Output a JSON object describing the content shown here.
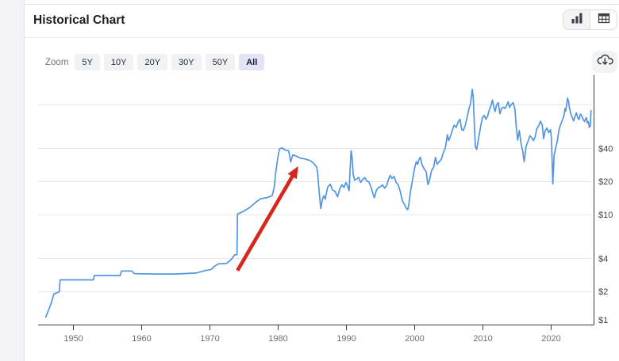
{
  "header": {
    "title": "Historical Chart",
    "view_toggle": {
      "options": [
        {
          "icon": "bar-chart-icon",
          "active": true
        },
        {
          "icon": "table-icon",
          "active": false
        }
      ]
    }
  },
  "toolbar": {
    "zoom_label": "Zoom",
    "range_buttons": [
      {
        "label": "5Y",
        "active": false
      },
      {
        "label": "10Y",
        "active": false
      },
      {
        "label": "20Y",
        "active": false
      },
      {
        "label": "30Y",
        "active": false
      },
      {
        "label": "50Y",
        "active": false
      },
      {
        "label": "All",
        "active": true
      }
    ],
    "download_icon": "cloud-download-icon"
  },
  "chart_data": {
    "type": "line",
    "title": "Historical Chart",
    "xlabel": "",
    "ylabel": "",
    "x_axis": {
      "ticks": [
        1950,
        1960,
        1970,
        1980,
        1990,
        2000,
        2010,
        2020
      ],
      "range": [
        1944.8,
        2026.3
      ]
    },
    "y_axis": {
      "scale": "log",
      "unit": "USD",
      "range": [
        1,
        180
      ],
      "ticks": [
        {
          "value": 40,
          "label": "$40"
        },
        {
          "value": 20,
          "label": "$20"
        },
        {
          "value": 10,
          "label": "$10"
        },
        {
          "value": 4,
          "label": "$4"
        },
        {
          "value": 2,
          "label": "$2"
        },
        {
          "value": 1,
          "label": "$1"
        }
      ],
      "gridline_values": [
        100,
        40,
        20,
        10,
        4,
        2,
        1
      ]
    },
    "legend": "none",
    "style": {
      "line_color": "#5295e2",
      "gridline_color": "#e7e7e7",
      "axis_color": "#3b3b3b",
      "x_label_color": "#6d7175",
      "y_label_color": "#3f4245",
      "annotation_color": "#d7261d"
    },
    "series": [
      {
        "name": "price-usd",
        "color": "#5295e2",
        "points": [
          [
            1946,
            1.17
          ],
          [
            1946.3,
            1.3
          ],
          [
            1946.6,
            1.45
          ],
          [
            1946.9,
            1.63
          ],
          [
            1947.2,
            1.9
          ],
          [
            1948,
            1.99
          ],
          [
            1948.1,
            2.55
          ],
          [
            1953,
            2.55
          ],
          [
            1953.1,
            2.79
          ],
          [
            1956.9,
            2.79
          ],
          [
            1957.1,
            3.07
          ],
          [
            1958.6,
            3.07
          ],
          [
            1959,
            2.9
          ],
          [
            1962,
            2.88
          ],
          [
            1965,
            2.88
          ],
          [
            1968,
            2.94
          ],
          [
            1969.3,
            3.09
          ],
          [
            1970.3,
            3.18
          ],
          [
            1970.6,
            3.35
          ],
          [
            1971.3,
            3.56
          ],
          [
            1972.5,
            3.6
          ],
          [
            1973.2,
            3.9
          ],
          [
            1973.7,
            4.31
          ],
          [
            1974.02,
            4.31
          ],
          [
            1974.1,
            10.11
          ],
          [
            1975,
            10.7
          ],
          [
            1975.9,
            11.6
          ],
          [
            1976.9,
            13.1
          ],
          [
            1977.5,
            13.9
          ],
          [
            1978.5,
            14.3
          ],
          [
            1979.2,
            14.85
          ],
          [
            1979.5,
            18
          ],
          [
            1979.7,
            24
          ],
          [
            1980,
            32.5
          ],
          [
            1980.25,
            39.5
          ],
          [
            1980.6,
            40.3
          ],
          [
            1981.1,
            38.5
          ],
          [
            1981.6,
            38
          ],
          [
            1981.9,
            30
          ],
          [
            1982.2,
            34.8
          ],
          [
            1982.7,
            34
          ],
          [
            1983.3,
            32.5
          ],
          [
            1984,
            32
          ],
          [
            1984.7,
            31
          ],
          [
            1985.2,
            29.5
          ],
          [
            1985.7,
            27
          ],
          [
            1985.85,
            24
          ],
          [
            1986,
            18
          ],
          [
            1986.3,
            11.3
          ],
          [
            1986.55,
            13.8
          ],
          [
            1986.75,
            14.8
          ],
          [
            1986.95,
            13.8
          ],
          [
            1987.3,
            17.7
          ],
          [
            1987.7,
            18.9
          ],
          [
            1988,
            16.8
          ],
          [
            1988.4,
            16.2
          ],
          [
            1988.75,
            14.5
          ],
          [
            1989.1,
            17.2
          ],
          [
            1989.4,
            18.6
          ],
          [
            1989.7,
            17.6
          ],
          [
            1990,
            19.6
          ],
          [
            1990.2,
            18.3
          ],
          [
            1990.45,
            16.5
          ],
          [
            1990.6,
            26
          ],
          [
            1990.75,
            38
          ],
          [
            1990.9,
            33
          ],
          [
            1991.05,
            23.5
          ],
          [
            1991.25,
            20.5
          ],
          [
            1991.55,
            21
          ],
          [
            1991.85,
            21.8
          ],
          [
            1992.15,
            19.6
          ],
          [
            1992.45,
            20.9
          ],
          [
            1992.75,
            21.7
          ],
          [
            1993.05,
            20.2
          ],
          [
            1993.35,
            19.8
          ],
          [
            1993.65,
            17.8
          ],
          [
            1993.95,
            15.4
          ],
          [
            1994.15,
            14.2
          ],
          [
            1994.45,
            16.6
          ],
          [
            1994.75,
            17.6
          ],
          [
            1995.05,
            17.9
          ],
          [
            1995.35,
            18.6
          ],
          [
            1995.65,
            17.4
          ],
          [
            1995.95,
            18.3
          ],
          [
            1996.2,
            20.6
          ],
          [
            1996.45,
            22.7
          ],
          [
            1996.75,
            21.3
          ],
          [
            1997.05,
            22.2
          ],
          [
            1997.35,
            19.6
          ],
          [
            1997.65,
            18.6
          ],
          [
            1997.95,
            16.2
          ],
          [
            1998.25,
            13.4
          ],
          [
            1998.55,
            12.4
          ],
          [
            1998.85,
            11.4
          ],
          [
            1999.05,
            11.1
          ],
          [
            1999.2,
            12.3
          ],
          [
            1999.45,
            16.3
          ],
          [
            1999.75,
            20.5
          ],
          [
            2000.05,
            26.5
          ],
          [
            2000.3,
            30.2
          ],
          [
            2000.5,
            28.6
          ],
          [
            2000.7,
            31.6
          ],
          [
            2000.9,
            33.1
          ],
          [
            2001.15,
            28.1
          ],
          [
            2001.45,
            26
          ],
          [
            2001.75,
            24.6
          ],
          [
            2002,
            18.7
          ],
          [
            2002.25,
            20.7
          ],
          [
            2002.55,
            25.2
          ],
          [
            2002.85,
            27
          ],
          [
            2003.1,
            33.1
          ],
          [
            2003.35,
            28.6
          ],
          [
            2003.65,
            30.2
          ],
          [
            2003.95,
            31.6
          ],
          [
            2004.25,
            36.3
          ],
          [
            2004.55,
            40.3
          ],
          [
            2004.85,
            53.1
          ],
          [
            2005.05,
            47
          ],
          [
            2005.35,
            52.5
          ],
          [
            2005.65,
            60
          ],
          [
            2005.85,
            65
          ],
          [
            2006.15,
            61.9
          ],
          [
            2006.45,
            70.2
          ],
          [
            2006.7,
            73.5
          ],
          [
            2006.95,
            59.1
          ],
          [
            2007.2,
            58.2
          ],
          [
            2007.5,
            65.5
          ],
          [
            2007.8,
            79.3
          ],
          [
            2008.05,
            92.9
          ],
          [
            2008.25,
            102
          ],
          [
            2008.4,
            122
          ],
          [
            2008.5,
            138
          ],
          [
            2008.65,
            114
          ],
          [
            2008.8,
            67
          ],
          [
            2008.95,
            41.5
          ],
          [
            2009.15,
            39.1
          ],
          [
            2009.45,
            50.5
          ],
          [
            2009.75,
            64.5
          ],
          [
            2010,
            76.5
          ],
          [
            2010.25,
            79.5
          ],
          [
            2010.5,
            73.5
          ],
          [
            2010.75,
            78
          ],
          [
            2011,
            89.5
          ],
          [
            2011.25,
            98
          ],
          [
            2011.45,
            110
          ],
          [
            2011.65,
            95.5
          ],
          [
            2011.85,
            86.5
          ],
          [
            2012.05,
            98.5
          ],
          [
            2012.3,
            104
          ],
          [
            2012.55,
            82.5
          ],
          [
            2012.8,
            92
          ],
          [
            2013.05,
            94.5
          ],
          [
            2013.3,
            92
          ],
          [
            2013.55,
            98
          ],
          [
            2013.75,
            106
          ],
          [
            2013.95,
            94
          ],
          [
            2014.2,
            99.5
          ],
          [
            2014.5,
            104
          ],
          [
            2014.75,
            90
          ],
          [
            2014.95,
            62
          ],
          [
            2015.15,
            47.5
          ],
          [
            2015.4,
            58
          ],
          [
            2015.65,
            44
          ],
          [
            2015.9,
            37.5
          ],
          [
            2016.1,
            30.3
          ],
          [
            2016.4,
            42
          ],
          [
            2016.65,
            46
          ],
          [
            2016.95,
            52
          ],
          [
            2017.2,
            50
          ],
          [
            2017.45,
            47
          ],
          [
            2017.7,
            50.5
          ],
          [
            2017.95,
            60
          ],
          [
            2018.25,
            64.5
          ],
          [
            2018.5,
            70.5
          ],
          [
            2018.75,
            65
          ],
          [
            2018.95,
            49
          ],
          [
            2019.2,
            58
          ],
          [
            2019.45,
            61
          ],
          [
            2019.7,
            55.5
          ],
          [
            2019.95,
            59
          ],
          [
            2020.1,
            50
          ],
          [
            2020.3,
            19
          ],
          [
            2020.5,
            35
          ],
          [
            2020.75,
            41
          ],
          [
            2020.95,
            46.5
          ],
          [
            2021.2,
            58.5
          ],
          [
            2021.45,
            66
          ],
          [
            2021.7,
            72
          ],
          [
            2021.95,
            80
          ],
          [
            2022.1,
            92
          ],
          [
            2022.2,
            87
          ],
          [
            2022.45,
            114
          ],
          [
            2022.6,
            107
          ],
          [
            2022.75,
            93
          ],
          [
            2022.95,
            82
          ],
          [
            2023.15,
            76
          ],
          [
            2023.35,
            71
          ],
          [
            2023.55,
            78
          ],
          [
            2023.75,
            84
          ],
          [
            2023.95,
            76
          ],
          [
            2024.15,
            73
          ],
          [
            2024.35,
            82
          ],
          [
            2024.55,
            79
          ],
          [
            2024.75,
            73
          ],
          [
            2024.95,
            70
          ],
          [
            2025.1,
            74
          ],
          [
            2025.25,
            76
          ],
          [
            2025.35,
            68
          ],
          [
            2025.5,
            70
          ],
          [
            2025.65,
            62
          ],
          [
            2025.8,
            64
          ],
          [
            2025.9,
            88
          ]
        ]
      }
    ],
    "annotation": {
      "type": "arrow",
      "color": "#d7261d",
      "from": {
        "year": 1974.1,
        "price": 3.1
      },
      "to": {
        "year": 1983.0,
        "price": 27.5
      }
    }
  }
}
